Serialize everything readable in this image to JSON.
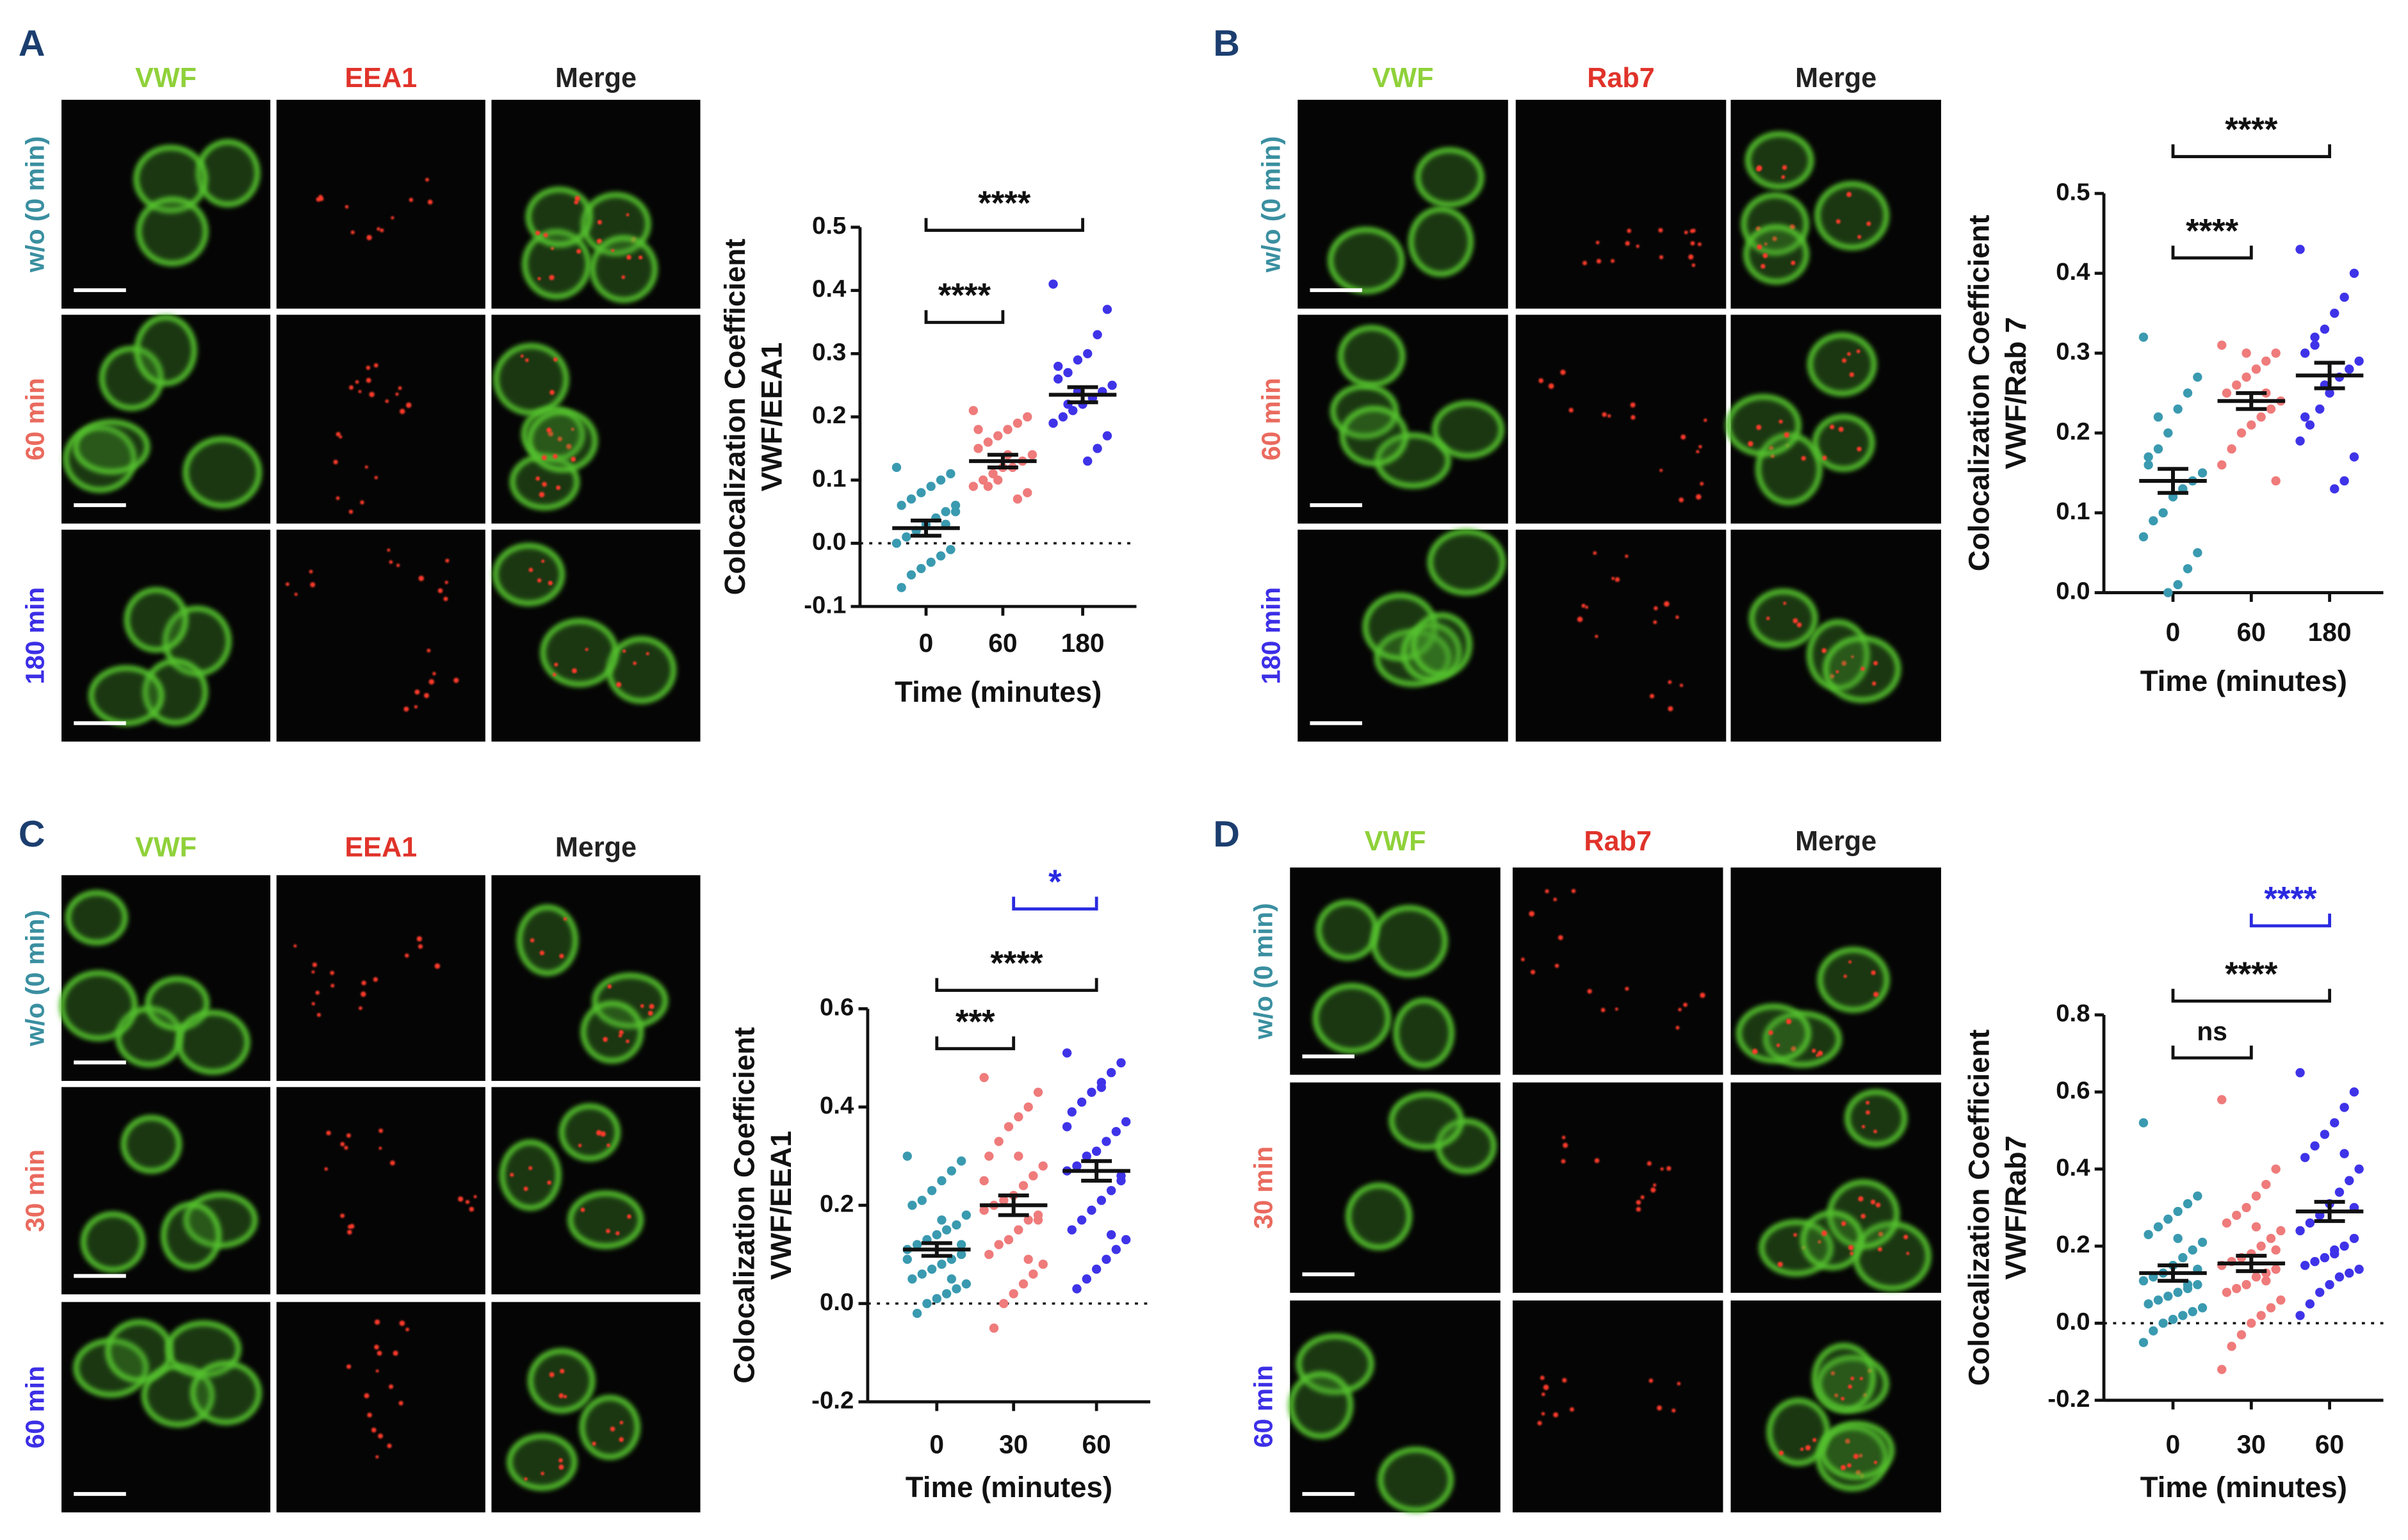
{
  "panels": [
    {
      "letter": "A",
      "channels": [
        {
          "text": "VWF",
          "color": "#8fd13a"
        },
        {
          "text": "EEA1",
          "color": "#e0332a"
        },
        {
          "text": "Merge",
          "color": "#222222"
        }
      ],
      "rows": [
        {
          "text": "w/o (0 min)",
          "color": "#3a8fa0"
        },
        {
          "text": "60 min",
          "color": "#ea6a5e"
        },
        {
          "text": "180 min",
          "color": "#3c2fe6"
        }
      ],
      "chart": {
        "type": "scatter",
        "ylabel": [
          "Colocalization Coefficient",
          "VWF/EEA1"
        ],
        "xlabel": "Time (minutes)",
        "categories": [
          "0",
          "60",
          "180"
        ],
        "ylim": [
          -0.1,
          0.5
        ],
        "yticks": [
          -0.1,
          {
            "value": 0,
            "label": "0.0"
          },
          0.1,
          0.2,
          0.3,
          0.4,
          0.5
        ],
        "zero_line": true,
        "series": [
          {
            "color": "#3a9ab0",
            "mean": 0.024,
            "sem": 0.012,
            "values": [
              0.12,
              0.11,
              0.1,
              0.09,
              0.08,
              0.07,
              0.06,
              0.05,
              0.05,
              0.04,
              0.03,
              0.02,
              0.01,
              0.0,
              -0.01,
              -0.02,
              -0.03,
              -0.04,
              -0.05,
              -0.07,
              0.06,
              0.03
            ]
          },
          {
            "color": "#ef7b7b",
            "mean": 0.13,
            "sem": 0.01,
            "values": [
              0.21,
              0.2,
              0.19,
              0.18,
              0.17,
              0.16,
              0.15,
              0.14,
              0.13,
              0.12,
              0.12,
              0.11,
              0.1,
              0.09,
              0.08,
              0.07,
              0.14,
              0.1,
              0.09,
              0.18
            ]
          },
          {
            "color": "#3f33e8",
            "mean": 0.235,
            "sem": 0.012,
            "values": [
              0.41,
              0.37,
              0.33,
              0.3,
              0.29,
              0.27,
              0.26,
              0.25,
              0.24,
              0.23,
              0.22,
              0.21,
              0.2,
              0.19,
              0.17,
              0.15,
              0.13,
              0.24,
              0.22,
              0.28
            ]
          }
        ],
        "brackets": [
          {
            "between": [
              "0",
              "60"
            ],
            "label": "****",
            "color": "#111111"
          },
          {
            "between": [
              "0",
              "180"
            ],
            "label": "****",
            "color": "#111111"
          }
        ]
      }
    },
    {
      "letter": "B",
      "channels": [
        {
          "text": "VWF",
          "color": "#8fd13a"
        },
        {
          "text": "Rab7",
          "color": "#e0332a"
        },
        {
          "text": "Merge",
          "color": "#222222"
        }
      ],
      "rows": [
        {
          "text": "w/o (0 min)",
          "color": "#3a8fa0"
        },
        {
          "text": "60 min",
          "color": "#ea6a5e"
        },
        {
          "text": "180 min",
          "color": "#3c2fe6"
        }
      ],
      "chart": {
        "type": "scatter",
        "ylabel": [
          "Colocalization Coefficient",
          "VWF/Rab 7"
        ],
        "xlabel": "Time (minutes)",
        "categories": [
          "0",
          "60",
          "180"
        ],
        "ylim": [
          0,
          0.5
        ],
        "yticks": [
          {
            "value": 0,
            "label": "0.0"
          },
          0.1,
          0.2,
          0.3,
          0.4,
          0.5
        ],
        "zero_line": false,
        "series": [
          {
            "color": "#3a9ab0",
            "mean": 0.14,
            "sem": 0.015,
            "values": [
              0.32,
              0.27,
              0.25,
              0.23,
              0.2,
              0.18,
              0.17,
              0.15,
              0.14,
              0.13,
              0.12,
              0.1,
              0.09,
              0.07,
              0.05,
              0.03,
              0.01,
              0.0,
              0.22,
              0.16
            ]
          },
          {
            "color": "#ef7b7b",
            "mean": 0.24,
            "sem": 0.01,
            "values": [
              0.31,
              0.3,
              0.29,
              0.28,
              0.27,
              0.26,
              0.25,
              0.24,
              0.23,
              0.22,
              0.21,
              0.2,
              0.18,
              0.16,
              0.14,
              0.25,
              0.28,
              0.3
            ]
          },
          {
            "color": "#3f33e8",
            "mean": 0.272,
            "sem": 0.016,
            "values": [
              0.43,
              0.4,
              0.37,
              0.35,
              0.33,
              0.32,
              0.3,
              0.29,
              0.28,
              0.27,
              0.25,
              0.23,
              0.21,
              0.19,
              0.17,
              0.14,
              0.13,
              0.26,
              0.31,
              0.22
            ]
          }
        ],
        "brackets": [
          {
            "between": [
              "0",
              "60"
            ],
            "label": "****",
            "color": "#111111"
          },
          {
            "between": [
              "0",
              "180"
            ],
            "label": "****",
            "color": "#111111"
          }
        ]
      }
    },
    {
      "letter": "C",
      "channels": [
        {
          "text": "VWF",
          "color": "#8fd13a"
        },
        {
          "text": "EEA1",
          "color": "#e0332a"
        },
        {
          "text": "Merge",
          "color": "#222222"
        }
      ],
      "rows": [
        {
          "text": "w/o (0 min)",
          "color": "#3a8fa0"
        },
        {
          "text": "30 min",
          "color": "#ea6a5e"
        },
        {
          "text": "60 min",
          "color": "#3c2fe6"
        }
      ],
      "chart": {
        "type": "scatter",
        "ylabel": [
          "Colocalization Coefficient",
          "VWF/EEA1"
        ],
        "xlabel": "Time (minutes)",
        "categories": [
          "0",
          "30",
          "60"
        ],
        "ylim": [
          -0.2,
          0.6
        ],
        "yticks": [
          -0.2,
          {
            "value": 0,
            "label": "0.0"
          },
          0.2,
          0.4,
          0.6
        ],
        "zero_line": true,
        "series": [
          {
            "color": "#3a9ab0",
            "mean": 0.11,
            "sem": 0.013,
            "values": [
              0.3,
              0.29,
              0.27,
              0.25,
              0.23,
              0.21,
              0.2,
              0.18,
              0.16,
              0.15,
              0.14,
              0.13,
              0.12,
              0.11,
              0.1,
              0.09,
              0.08,
              0.07,
              0.06,
              0.05,
              0.04,
              0.03,
              0.02,
              0.01,
              0.0,
              -0.02,
              0.09,
              0.12,
              0.05,
              0.17
            ]
          },
          {
            "color": "#ef7b7b",
            "mean": 0.2,
            "sem": 0.02,
            "values": [
              0.46,
              0.43,
              0.4,
              0.38,
              0.36,
              0.33,
              0.3,
              0.28,
              0.26,
              0.24,
              0.22,
              0.21,
              0.2,
              0.19,
              0.18,
              0.17,
              0.15,
              0.13,
              0.12,
              0.1,
              0.08,
              0.06,
              0.04,
              0.02,
              0.0,
              -0.05,
              0.25,
              0.17,
              0.09,
              0.3
            ]
          },
          {
            "color": "#3f33e8",
            "mean": 0.27,
            "sem": 0.02,
            "values": [
              0.51,
              0.49,
              0.47,
              0.45,
              0.43,
              0.41,
              0.39,
              0.37,
              0.35,
              0.33,
              0.31,
              0.3,
              0.28,
              0.27,
              0.25,
              0.23,
              0.21,
              0.19,
              0.17,
              0.15,
              0.13,
              0.11,
              0.09,
              0.07,
              0.05,
              0.03,
              0.36,
              0.26,
              0.14,
              0.44
            ]
          }
        ],
        "brackets": [
          {
            "between": [
              "0",
              "30"
            ],
            "label": "***",
            "color": "#111111"
          },
          {
            "between": [
              "0",
              "60"
            ],
            "label": "****",
            "color": "#111111"
          },
          {
            "between": [
              "30",
              "60"
            ],
            "label": "*",
            "color": "#2a2ae0"
          }
        ]
      }
    },
    {
      "letter": "D",
      "channels": [
        {
          "text": "VWF",
          "color": "#8fd13a"
        },
        {
          "text": "Rab7",
          "color": "#e0332a"
        },
        {
          "text": "Merge",
          "color": "#222222"
        }
      ],
      "rows": [
        {
          "text": "w/o (0 min)",
          "color": "#3a8fa0"
        },
        {
          "text": "30 min",
          "color": "#ea6a5e"
        },
        {
          "text": "60 min",
          "color": "#3c2fe6"
        }
      ],
      "chart": {
        "type": "scatter",
        "ylabel": [
          "Colocalization Coefficient",
          "VWF/Rab7"
        ],
        "xlabel": "Time (minutes)",
        "categories": [
          "0",
          "30",
          "60"
        ],
        "ylim": [
          -0.2,
          0.8
        ],
        "yticks": [
          -0.2,
          {
            "value": 0,
            "label": "0.0"
          },
          0.2,
          0.4,
          0.6,
          0.8
        ],
        "zero_line": true,
        "series": [
          {
            "color": "#3a9ab0",
            "mean": 0.13,
            "sem": 0.02,
            "values": [
              0.52,
              0.33,
              0.31,
              0.29,
              0.27,
              0.25,
              0.23,
              0.21,
              0.19,
              0.17,
              0.15,
              0.13,
              0.12,
              0.11,
              0.1,
              0.09,
              0.08,
              0.07,
              0.06,
              0.05,
              0.04,
              0.03,
              0.02,
              0.01,
              0.0,
              -0.02,
              -0.05,
              0.14,
              0.1,
              0.22
            ]
          },
          {
            "color": "#ef7b7b",
            "mean": 0.155,
            "sem": 0.02,
            "values": [
              0.58,
              0.4,
              0.36,
              0.33,
              0.3,
              0.28,
              0.26,
              0.24,
              0.22,
              0.2,
              0.18,
              0.17,
              0.16,
              0.15,
              0.14,
              0.13,
              0.12,
              0.1,
              0.09,
              0.08,
              0.06,
              0.04,
              0.02,
              0.0,
              -0.03,
              -0.06,
              -0.12,
              0.19,
              0.11,
              0.25
            ]
          },
          {
            "color": "#3f33e8",
            "mean": 0.29,
            "sem": 0.025,
            "values": [
              0.65,
              0.6,
              0.56,
              0.52,
              0.49,
              0.46,
              0.43,
              0.4,
              0.37,
              0.34,
              0.31,
              0.28,
              0.26,
              0.24,
              0.22,
              0.2,
              0.18,
              0.17,
              0.16,
              0.15,
              0.14,
              0.13,
              0.12,
              0.1,
              0.08,
              0.05,
              0.02,
              0.3,
              0.44,
              0.19
            ]
          }
        ],
        "brackets": [
          {
            "between": [
              "0",
              "30"
            ],
            "label": "ns",
            "color": "#111111"
          },
          {
            "between": [
              "0",
              "60"
            ],
            "label": "****",
            "color": "#111111"
          },
          {
            "between": [
              "30",
              "60"
            ],
            "label": "****",
            "color": "#2a2ae0"
          }
        ]
      }
    }
  ]
}
